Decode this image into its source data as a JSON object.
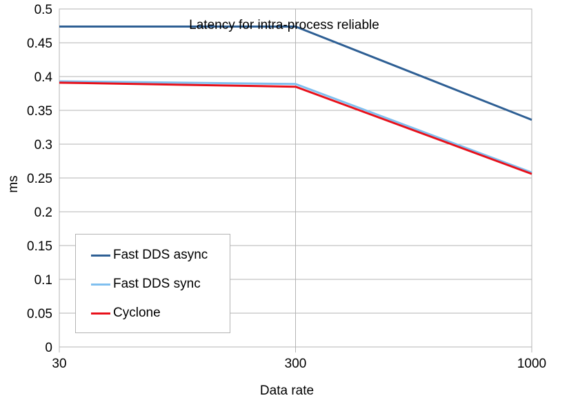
{
  "chart_data": {
    "type": "line",
    "title": "Latency for intra-process reliable",
    "xlabel": "Data rate",
    "ylabel": "ms",
    "categories": [
      "30",
      "300",
      "1000"
    ],
    "ylim": [
      0,
      0.5
    ],
    "yticks": [
      "0",
      "0.05",
      "0.1",
      "0.15",
      "0.2",
      "0.25",
      "0.3",
      "0.35",
      "0.4",
      "0.45",
      "0.5"
    ],
    "grid": true,
    "legend_position": "bottom-left",
    "series": [
      {
        "name": "Fast DDS async",
        "color": "#2e5f94",
        "values": [
          0.474,
          0.474,
          0.336
        ]
      },
      {
        "name": "Fast DDS sync",
        "color": "#7fbfef",
        "values": [
          0.393,
          0.389,
          0.258
        ]
      },
      {
        "name": "Cyclone",
        "color": "#e8101a",
        "values": [
          0.391,
          0.385,
          0.256
        ]
      }
    ]
  }
}
